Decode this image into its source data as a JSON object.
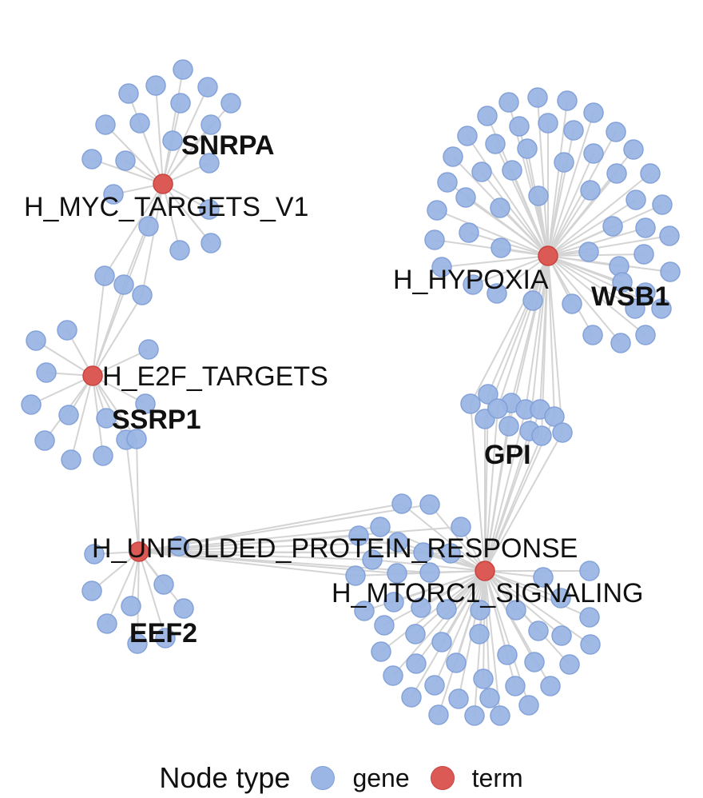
{
  "terms": [
    {
      "id": "myc",
      "label": "H_MYC_TARGETS_V1"
    },
    {
      "id": "hyp",
      "label": "H_HYPOXIA"
    },
    {
      "id": "e2f",
      "label": "H_E2F_TARGETS"
    },
    {
      "id": "upr",
      "label": "H_UNFOLDED_PROTEIN_RESPONSE"
    },
    {
      "id": "mtor",
      "label": "H_MTORC1_SIGNALING"
    }
  ],
  "gene_labels": [
    "SNRPA",
    "WSB1",
    "SSRP1",
    "GPI",
    "EEF2"
  ],
  "legend": {
    "title": "Node type",
    "gene": "gene",
    "term": "term"
  },
  "colors": {
    "gene": "#9bb6e4",
    "term": "#dc5a55",
    "edge": "#d4d4d4"
  }
}
